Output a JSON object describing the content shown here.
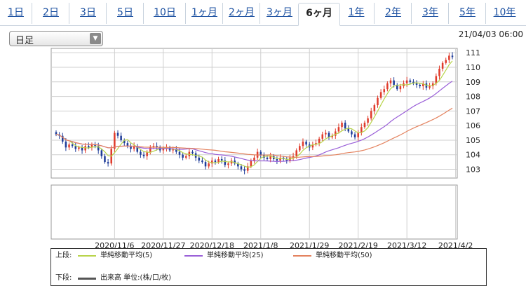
{
  "tabs": [
    {
      "label": "1日",
      "active": false
    },
    {
      "label": "2日",
      "active": false
    },
    {
      "label": "3日",
      "active": false
    },
    {
      "label": "5日",
      "active": false
    },
    {
      "label": "10日",
      "active": false
    },
    {
      "label": "1ヶ月",
      "active": false
    },
    {
      "label": "2ヶ月",
      "active": false
    },
    {
      "label": "3ヶ月",
      "active": false
    },
    {
      "label": "6ヶ月",
      "active": true
    },
    {
      "label": "1年",
      "active": false
    },
    {
      "label": "2年",
      "active": false
    },
    {
      "label": "3年",
      "active": false
    },
    {
      "label": "5年",
      "active": false
    },
    {
      "label": "10年",
      "active": false
    }
  ],
  "period_select": {
    "value": "日足"
  },
  "timestamp": "21/04/03 06:00",
  "legend": {
    "upper_label": "上段:",
    "lower_label": "下段:",
    "volume_label": "出来高 単位:(株/口/枚)",
    "volume_color": "#555555"
  },
  "chart_data": {
    "type": "candlestick",
    "y_ticks": [
      103,
      104,
      105,
      106,
      107,
      108,
      109,
      110,
      111
    ],
    "ylim": [
      102.4,
      111.3
    ],
    "x_ticks": [
      "2020/11/6",
      "2020/11/27",
      "2020/12/18",
      "2021/1/8",
      "2021/1/29",
      "2021/2/19",
      "2021/3/12",
      "2021/4/2"
    ],
    "x_tick_index": [
      18,
      33,
      48,
      63,
      78,
      93,
      108,
      123
    ],
    "colors": {
      "up": "#e03c2c",
      "down": "#1f3d99"
    },
    "close": [
      105.4,
      105.3,
      104.9,
      104.5,
      104.7,
      104.6,
      104.4,
      104.5,
      104.3,
      104.6,
      104.5,
      104.7,
      104.6,
      104.3,
      103.9,
      103.5,
      103.4,
      104.4,
      105.5,
      105.3,
      105.0,
      104.8,
      104.6,
      104.4,
      104.6,
      104.2,
      104.0,
      103.9,
      104.2,
      104.5,
      104.6,
      104.5,
      104.3,
      104.4,
      104.5,
      104.3,
      104.4,
      104.2,
      104.0,
      103.8,
      103.9,
      104.2,
      104.1,
      103.8,
      103.6,
      103.5,
      103.2,
      103.4,
      103.6,
      103.5,
      103.7,
      103.6,
      103.3,
      103.4,
      103.6,
      103.4,
      103.2,
      103.0,
      102.9,
      103.2,
      103.6,
      103.8,
      104.2,
      104.0,
      103.8,
      103.7,
      103.9,
      103.7,
      103.6,
      103.8,
      103.7,
      103.6,
      103.8,
      103.9,
      104.3,
      104.6,
      104.9,
      104.7,
      104.5,
      104.7,
      104.8,
      105.1,
      105.4,
      105.5,
      105.2,
      105.3,
      105.6,
      105.9,
      106.2,
      105.8,
      105.6,
      105.4,
      105.2,
      105.5,
      105.9,
      106.2,
      106.5,
      107.0,
      107.4,
      107.9,
      108.3,
      108.5,
      108.9,
      109.1,
      108.8,
      108.5,
      108.7,
      108.9,
      109.1,
      109.0,
      108.9,
      108.8,
      108.7,
      108.9,
      108.6,
      108.7,
      108.9,
      109.4,
      109.9,
      110.3,
      110.5,
      110.8,
      110.7
    ],
    "volume": [],
    "series": [
      {
        "name": "単純移動平均(5)",
        "color": "#b8d44a",
        "period": 5
      },
      {
        "name": "単純移動平均(25)",
        "color": "#9a5fd8",
        "period": 25
      },
      {
        "name": "単純移動平均(50)",
        "color": "#e4825e",
        "period": 50
      }
    ]
  }
}
